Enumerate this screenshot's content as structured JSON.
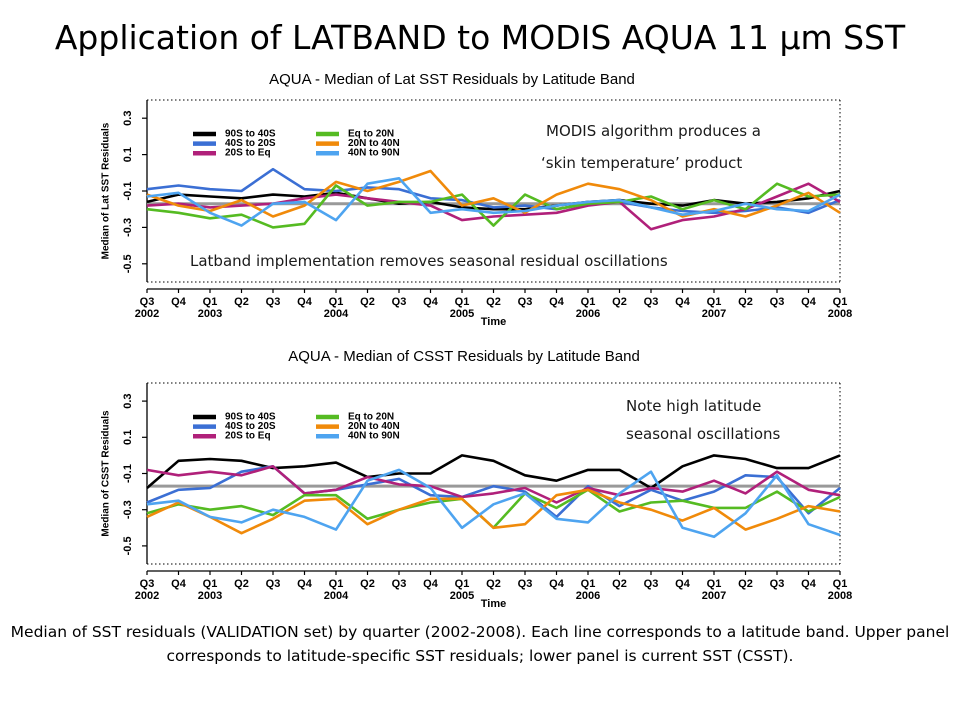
{
  "slide": {
    "title": "Application of LATBAND to MODIS AQUA 11 μm SST",
    "caption": "Median of SST residuals (VALIDATION set) by quarter (2002-2008).  Each line corresponds to a latitude band. Upper panel corresponds to latitude-specific SST residuals; lower panel is current SST (CSST)."
  },
  "chart_data": [
    {
      "type": "line",
      "title": "AQUA - Median of Lat SST Residuals by Latitude Band",
      "xlabel": "Time",
      "ylabel": "Median of Lat SST Residuals",
      "ylim": [
        -0.6,
        0.4
      ],
      "yticks": [
        0.3,
        0.1,
        -0.1,
        -0.3,
        -0.5
      ],
      "ytick_labels": [
        "0.3",
        "0.1",
        "-0.1",
        "-0.3",
        "-0.5"
      ],
      "xticks": [
        {
          "x": 0,
          "quarter": "Q3",
          "year": "2002"
        },
        {
          "x": 1,
          "quarter": "Q4",
          "year": ""
        },
        {
          "x": 2,
          "quarter": "Q1",
          "year": "2003"
        },
        {
          "x": 3,
          "quarter": "Q2",
          "year": ""
        },
        {
          "x": 4,
          "quarter": "Q3",
          "year": ""
        },
        {
          "x": 5,
          "quarter": "Q4",
          "year": ""
        },
        {
          "x": 6,
          "quarter": "Q1",
          "year": "2004"
        },
        {
          "x": 7,
          "quarter": "Q2",
          "year": ""
        },
        {
          "x": 8,
          "quarter": "Q3",
          "year": ""
        },
        {
          "x": 9,
          "quarter": "Q4",
          "year": ""
        },
        {
          "x": 10,
          "quarter": "Q1",
          "year": "2005"
        },
        {
          "x": 11,
          "quarter": "Q2",
          "year": ""
        },
        {
          "x": 12,
          "quarter": "Q3",
          "year": ""
        },
        {
          "x": 13,
          "quarter": "Q4",
          "year": ""
        },
        {
          "x": 14,
          "quarter": "Q1",
          "year": "2006"
        },
        {
          "x": 15,
          "quarter": "Q2",
          "year": ""
        },
        {
          "x": 16,
          "quarter": "Q3",
          "year": ""
        },
        {
          "x": 17,
          "quarter": "Q4",
          "year": ""
        },
        {
          "x": 18,
          "quarter": "Q1",
          "year": "2007"
        },
        {
          "x": 19,
          "quarter": "Q2",
          "year": ""
        },
        {
          "x": 20,
          "quarter": "Q3",
          "year": ""
        },
        {
          "x": 21,
          "quarter": "Q4",
          "year": ""
        },
        {
          "x": 22,
          "quarter": "Q1",
          "year": "2008"
        }
      ],
      "reference_line": -0.17,
      "reference_color": "#999999",
      "grid": false,
      "legend_position": "top-left",
      "series": [
        {
          "name": "90S to 40S",
          "color": "#000000",
          "values": [
            -0.16,
            -0.12,
            -0.13,
            -0.14,
            -0.12,
            -0.13,
            -0.11,
            -0.14,
            -0.17,
            -0.16,
            -0.19,
            -0.2,
            -0.2,
            -0.18,
            -0.16,
            -0.15,
            -0.17,
            -0.18,
            -0.15,
            -0.17,
            -0.16,
            -0.14,
            -0.1
          ]
        },
        {
          "name": "40S to 20S",
          "color": "#3b6fd4",
          "values": [
            -0.09,
            -0.07,
            -0.09,
            -0.1,
            0.02,
            -0.09,
            -0.1,
            -0.08,
            -0.09,
            -0.14,
            -0.15,
            -0.19,
            -0.18,
            -0.2,
            -0.17,
            -0.16,
            -0.19,
            -0.21,
            -0.22,
            -0.21,
            -0.19,
            -0.22,
            -0.15
          ]
        },
        {
          "name": "20S to Eq",
          "color": "#b0207a",
          "values": [
            -0.18,
            -0.17,
            -0.19,
            -0.18,
            -0.17,
            -0.14,
            -0.12,
            -0.14,
            -0.16,
            -0.18,
            -0.26,
            -0.24,
            -0.23,
            -0.22,
            -0.18,
            -0.16,
            -0.31,
            -0.26,
            -0.24,
            -0.2,
            -0.13,
            -0.06,
            -0.16
          ]
        },
        {
          "name": "Eq to 20N",
          "color": "#55bb22",
          "values": [
            -0.2,
            -0.22,
            -0.25,
            -0.23,
            -0.3,
            -0.28,
            -0.07,
            -0.18,
            -0.16,
            -0.16,
            -0.12,
            -0.29,
            -0.12,
            -0.2,
            -0.17,
            -0.16,
            -0.13,
            -0.2,
            -0.15,
            -0.2,
            -0.06,
            -0.13,
            -0.12
          ]
        },
        {
          "name": "20N to 40N",
          "color": "#f08a0a",
          "values": [
            -0.12,
            -0.18,
            -0.21,
            -0.15,
            -0.24,
            -0.18,
            -0.05,
            -0.1,
            -0.05,
            0.01,
            -0.18,
            -0.14,
            -0.22,
            -0.12,
            -0.06,
            -0.09,
            -0.15,
            -0.24,
            -0.2,
            -0.24,
            -0.18,
            -0.11,
            -0.22
          ]
        },
        {
          "name": "40N to 90N",
          "color": "#4ea4f0",
          "values": [
            -0.13,
            -0.11,
            -0.22,
            -0.29,
            -0.17,
            -0.16,
            -0.26,
            -0.06,
            -0.03,
            -0.22,
            -0.2,
            -0.22,
            -0.21,
            -0.18,
            -0.16,
            -0.15,
            -0.19,
            -0.23,
            -0.21,
            -0.17,
            -0.2,
            -0.21,
            -0.12
          ]
        }
      ],
      "annotations": [
        {
          "text": "MODIS algorithm produces a"
        },
        {
          "text": "‘skin temperature’ product"
        },
        {
          "text": "Latband implementation removes seasonal residual oscillations"
        }
      ]
    },
    {
      "type": "line",
      "title": "AQUA - Median of CSST Residuals by Latitude Band",
      "xlabel": "Time",
      "ylabel": "Median of CSST Residuals",
      "ylim": [
        -0.6,
        0.4
      ],
      "yticks": [
        0.3,
        0.1,
        -0.1,
        -0.3,
        -0.5
      ],
      "ytick_labels": [
        "0.3",
        "0.1",
        "-0.1",
        "-0.3",
        "-0.5"
      ],
      "xticks": [
        {
          "x": 0,
          "quarter": "Q3",
          "year": "2002"
        },
        {
          "x": 1,
          "quarter": "Q4",
          "year": ""
        },
        {
          "x": 2,
          "quarter": "Q1",
          "year": "2003"
        },
        {
          "x": 3,
          "quarter": "Q2",
          "year": ""
        },
        {
          "x": 4,
          "quarter": "Q3",
          "year": ""
        },
        {
          "x": 5,
          "quarter": "Q4",
          "year": ""
        },
        {
          "x": 6,
          "quarter": "Q1",
          "year": "2004"
        },
        {
          "x": 7,
          "quarter": "Q2",
          "year": ""
        },
        {
          "x": 8,
          "quarter": "Q3",
          "year": ""
        },
        {
          "x": 9,
          "quarter": "Q4",
          "year": ""
        },
        {
          "x": 10,
          "quarter": "Q1",
          "year": "2005"
        },
        {
          "x": 11,
          "quarter": "Q2",
          "year": ""
        },
        {
          "x": 12,
          "quarter": "Q3",
          "year": ""
        },
        {
          "x": 13,
          "quarter": "Q4",
          "year": ""
        },
        {
          "x": 14,
          "quarter": "Q1",
          "year": "2006"
        },
        {
          "x": 15,
          "quarter": "Q2",
          "year": ""
        },
        {
          "x": 16,
          "quarter": "Q3",
          "year": ""
        },
        {
          "x": 17,
          "quarter": "Q4",
          "year": ""
        },
        {
          "x": 18,
          "quarter": "Q1",
          "year": "2007"
        },
        {
          "x": 19,
          "quarter": "Q2",
          "year": ""
        },
        {
          "x": 20,
          "quarter": "Q3",
          "year": ""
        },
        {
          "x": 21,
          "quarter": "Q4",
          "year": ""
        },
        {
          "x": 22,
          "quarter": "Q1",
          "year": "2008"
        }
      ],
      "reference_line": -0.17,
      "reference_color": "#999999",
      "grid": false,
      "legend_position": "top-left",
      "series": [
        {
          "name": "90S to 40S",
          "color": "#000000",
          "values": [
            -0.18,
            -0.03,
            -0.02,
            -0.03,
            -0.07,
            -0.06,
            -0.04,
            -0.12,
            -0.1,
            -0.1,
            0.0,
            -0.03,
            -0.11,
            -0.14,
            -0.08,
            -0.08,
            -0.18,
            -0.06,
            0.0,
            -0.02,
            -0.07,
            -0.07,
            0.0
          ]
        },
        {
          "name": "40S to 20S",
          "color": "#3b6fd4",
          "values": [
            -0.26,
            -0.19,
            -0.18,
            -0.09,
            -0.06,
            -0.21,
            -0.19,
            -0.16,
            -0.13,
            -0.22,
            -0.23,
            -0.17,
            -0.2,
            -0.34,
            -0.17,
            -0.28,
            -0.19,
            -0.25,
            -0.2,
            -0.11,
            -0.12,
            -0.32,
            -0.18
          ]
        },
        {
          "name": "20S to Eq",
          "color": "#b0207a",
          "values": [
            -0.08,
            -0.11,
            -0.09,
            -0.11,
            -0.06,
            -0.21,
            -0.19,
            -0.12,
            -0.16,
            -0.17,
            -0.23,
            -0.21,
            -0.18,
            -0.26,
            -0.18,
            -0.22,
            -0.18,
            -0.2,
            -0.14,
            -0.21,
            -0.09,
            -0.19,
            -0.22
          ]
        },
        {
          "name": "Eq to 20N",
          "color": "#55bb22",
          "values": [
            -0.32,
            -0.27,
            -0.3,
            -0.28,
            -0.33,
            -0.22,
            -0.22,
            -0.35,
            -0.3,
            -0.26,
            -0.24,
            -0.4,
            -0.21,
            -0.29,
            -0.19,
            -0.31,
            -0.26,
            -0.25,
            -0.29,
            -0.29,
            -0.2,
            -0.31,
            -0.23
          ]
        },
        {
          "name": "20N to 40N",
          "color": "#f08a0a",
          "values": [
            -0.34,
            -0.26,
            -0.34,
            -0.43,
            -0.35,
            -0.25,
            -0.24,
            -0.38,
            -0.3,
            -0.24,
            -0.24,
            -0.4,
            -0.38,
            -0.22,
            -0.19,
            -0.26,
            -0.3,
            -0.36,
            -0.29,
            -0.41,
            -0.35,
            -0.28,
            -0.31
          ]
        },
        {
          "name": "40N to 90N",
          "color": "#4ea4f0",
          "values": [
            -0.27,
            -0.25,
            -0.34,
            -0.37,
            -0.3,
            -0.34,
            -0.41,
            -0.14,
            -0.08,
            -0.18,
            -0.4,
            -0.27,
            -0.21,
            -0.35,
            -0.37,
            -0.21,
            -0.09,
            -0.4,
            -0.45,
            -0.32,
            -0.11,
            -0.38,
            -0.44
          ]
        }
      ],
      "annotations": [
        {
          "text": "Note high latitude"
        },
        {
          "text": "seasonal oscillations"
        }
      ]
    }
  ]
}
